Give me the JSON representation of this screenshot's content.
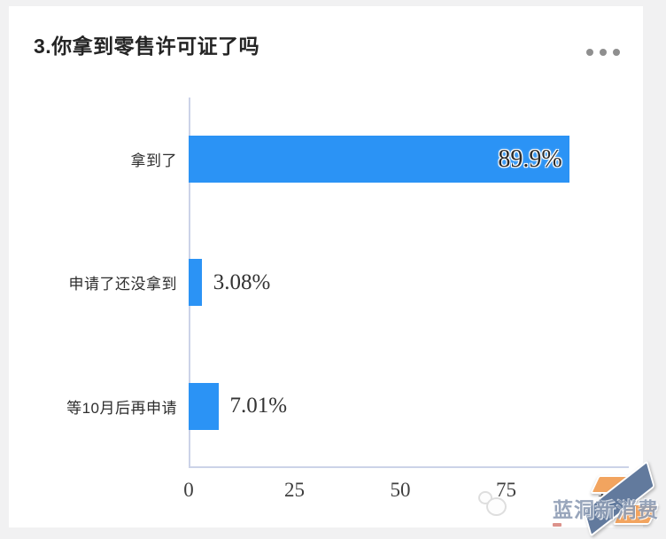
{
  "card": {
    "title": "3.你拿到零售许可证了吗",
    "menu_icon": "more-dots-icon"
  },
  "chart_data": {
    "type": "bar",
    "orientation": "horizontal",
    "title": "3.你拿到零售许可证了吗",
    "categories": [
      "拿到了",
      "申请了还没拿到",
      "等10月后再申请"
    ],
    "values": [
      89.9,
      3.08,
      7.01
    ],
    "value_labels": [
      "89.9%",
      "3.08%",
      "7.01%"
    ],
    "x_ticks": [
      "0",
      "25",
      "50",
      "75",
      "100"
    ],
    "xlim": [
      0,
      100
    ],
    "xlabel": "",
    "ylabel": "",
    "grid": false,
    "legend": "none",
    "bar_color": "#2b93f5",
    "axis_color": "#ccd3e8"
  },
  "watermark": {
    "text": "蓝洞新消费",
    "logo_orange": "#f2a45f",
    "logo_blue": "#627a9d"
  }
}
